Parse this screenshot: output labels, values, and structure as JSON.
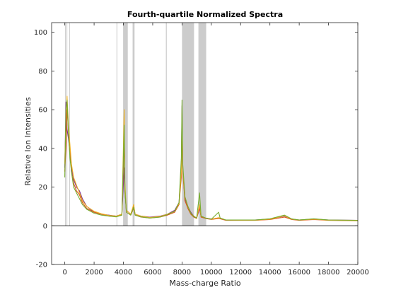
{
  "chart_data": {
    "type": "line",
    "title": "Fourth-quartile Normalized Spectra",
    "xlabel": "Mass-charge Ratio",
    "ylabel": "Relative Ion Intensities",
    "xlim": [
      -900,
      20000
    ],
    "ylim": [
      -20,
      105
    ],
    "xticks": [
      0,
      2000,
      4000,
      6000,
      8000,
      10000,
      12000,
      14000,
      16000,
      18000,
      20000
    ],
    "yticks": [
      -20,
      0,
      20,
      40,
      60,
      80,
      100
    ],
    "baseline_y": 0,
    "grid": false,
    "highlight_bands": [
      [
        20,
        60
      ],
      [
        120,
        160
      ],
      [
        300,
        350
      ],
      [
        3530,
        3580
      ],
      [
        3980,
        4300
      ],
      [
        4630,
        4760
      ],
      [
        6900,
        6960
      ],
      [
        8000,
        8820
      ],
      [
        9120,
        9650
      ]
    ],
    "series": [
      {
        "color": "#7E2F8E",
        "points": [
          [
            0,
            30
          ],
          [
            80,
            64
          ],
          [
            150,
            50
          ],
          [
            250,
            45
          ],
          [
            350,
            38
          ],
          [
            450,
            30
          ],
          [
            600,
            24
          ],
          [
            800,
            20
          ],
          [
            1000,
            18
          ],
          [
            1200,
            14
          ],
          [
            1500,
            10
          ],
          [
            2000,
            7
          ],
          [
            2500,
            6
          ],
          [
            3000,
            5.5
          ],
          [
            3500,
            5
          ],
          [
            3900,
            6
          ],
          [
            4050,
            30
          ],
          [
            4100,
            18
          ],
          [
            4200,
            8
          ],
          [
            4500,
            6
          ],
          [
            4700,
            10
          ],
          [
            4800,
            6
          ],
          [
            5200,
            5
          ],
          [
            5800,
            4.5
          ],
          [
            6500,
            5
          ],
          [
            7000,
            6
          ],
          [
            7500,
            8
          ],
          [
            7800,
            12
          ],
          [
            7950,
            30
          ],
          [
            8000,
            62
          ],
          [
            8050,
            30
          ],
          [
            8200,
            14
          ],
          [
            8400,
            10
          ],
          [
            8600,
            7
          ],
          [
            8800,
            5
          ],
          [
            9000,
            4
          ],
          [
            9200,
            9
          ],
          [
            9300,
            5
          ],
          [
            9600,
            4
          ],
          [
            10000,
            3.5
          ],
          [
            10500,
            4
          ],
          [
            11000,
            3
          ],
          [
            12000,
            3
          ],
          [
            13000,
            3
          ],
          [
            14000,
            3.5
          ],
          [
            15000,
            5
          ],
          [
            15500,
            3.5
          ],
          [
            16000,
            3
          ],
          [
            17000,
            3.5
          ],
          [
            18000,
            3
          ],
          [
            20000,
            2.8
          ]
        ]
      },
      {
        "color": "#D95319",
        "points": [
          [
            0,
            28
          ],
          [
            80,
            40
          ],
          [
            150,
            60
          ],
          [
            250,
            50
          ],
          [
            350,
            40
          ],
          [
            450,
            28
          ],
          [
            600,
            22
          ],
          [
            800,
            18
          ],
          [
            1000,
            16
          ],
          [
            1200,
            12
          ],
          [
            1500,
            9
          ],
          [
            2000,
            7
          ],
          [
            2500,
            6
          ],
          [
            3000,
            5
          ],
          [
            3500,
            4.8
          ],
          [
            3900,
            5.5
          ],
          [
            4050,
            45
          ],
          [
            4100,
            20
          ],
          [
            4200,
            7
          ],
          [
            4500,
            5.5
          ],
          [
            4700,
            9
          ],
          [
            4800,
            5.5
          ],
          [
            5200,
            4.5
          ],
          [
            5800,
            4
          ],
          [
            6500,
            4.5
          ],
          [
            7000,
            5.5
          ],
          [
            7500,
            7
          ],
          [
            7800,
            11
          ],
          [
            7950,
            25
          ],
          [
            8000,
            55
          ],
          [
            8050,
            28
          ],
          [
            8200,
            13
          ],
          [
            8400,
            9
          ],
          [
            8600,
            6
          ],
          [
            8800,
            4.5
          ],
          [
            9000,
            3.8
          ],
          [
            9200,
            10
          ],
          [
            9300,
            4.5
          ],
          [
            9600,
            3.8
          ],
          [
            10000,
            3.3
          ],
          [
            10500,
            3.8
          ],
          [
            11000,
            2.8
          ],
          [
            12000,
            2.8
          ],
          [
            13000,
            2.8
          ],
          [
            14000,
            3.2
          ],
          [
            15000,
            4.5
          ],
          [
            15500,
            3.2
          ],
          [
            16000,
            2.8
          ],
          [
            17000,
            3.2
          ],
          [
            18000,
            2.8
          ],
          [
            20000,
            2.6
          ]
        ]
      },
      {
        "color": "#EDB120",
        "points": [
          [
            0,
            32
          ],
          [
            80,
            55
          ],
          [
            150,
            67
          ],
          [
            250,
            52
          ],
          [
            350,
            42
          ],
          [
            450,
            32
          ],
          [
            600,
            25
          ],
          [
            800,
            21
          ],
          [
            1000,
            17
          ],
          [
            1200,
            13
          ],
          [
            1500,
            10
          ],
          [
            2000,
            7.5
          ],
          [
            2500,
            6.2
          ],
          [
            3000,
            5.4
          ],
          [
            3500,
            5
          ],
          [
            3900,
            6
          ],
          [
            4050,
            60
          ],
          [
            4100,
            22
          ],
          [
            4200,
            8
          ],
          [
            4500,
            6
          ],
          [
            4700,
            11
          ],
          [
            4800,
            6
          ],
          [
            5200,
            5
          ],
          [
            5800,
            4.3
          ],
          [
            6500,
            4.8
          ],
          [
            7000,
            6
          ],
          [
            7500,
            7.5
          ],
          [
            7800,
            11.5
          ],
          [
            7950,
            28
          ],
          [
            8000,
            58
          ],
          [
            8050,
            30
          ],
          [
            8200,
            15
          ],
          [
            8400,
            10
          ],
          [
            8600,
            6.5
          ],
          [
            8800,
            5
          ],
          [
            9000,
            4
          ],
          [
            9200,
            11
          ],
          [
            9300,
            5
          ],
          [
            9600,
            4
          ],
          [
            10000,
            3.4
          ],
          [
            10500,
            4.2
          ],
          [
            11000,
            3
          ],
          [
            12000,
            2.9
          ],
          [
            13000,
            2.9
          ],
          [
            14000,
            3.4
          ],
          [
            15000,
            5.2
          ],
          [
            15500,
            3.4
          ],
          [
            16000,
            3
          ],
          [
            17000,
            3.4
          ],
          [
            18000,
            2.9
          ],
          [
            20000,
            2.7
          ]
        ]
      },
      {
        "color": "#77AC30",
        "points": [
          [
            0,
            25
          ],
          [
            80,
            60
          ],
          [
            150,
            65
          ],
          [
            250,
            48
          ],
          [
            350,
            35
          ],
          [
            450,
            28
          ],
          [
            600,
            20
          ],
          [
            800,
            17
          ],
          [
            1000,
            14
          ],
          [
            1200,
            11
          ],
          [
            1500,
            8.5
          ],
          [
            2000,
            6.5
          ],
          [
            2500,
            5.5
          ],
          [
            3000,
            5
          ],
          [
            3500,
            4.6
          ],
          [
            3900,
            5.5
          ],
          [
            4050,
            52
          ],
          [
            4100,
            19
          ],
          [
            4200,
            7
          ],
          [
            4500,
            5.5
          ],
          [
            4700,
            9.5
          ],
          [
            4800,
            5.5
          ],
          [
            5200,
            4.6
          ],
          [
            5800,
            4
          ],
          [
            6500,
            4.5
          ],
          [
            7000,
            5.8
          ],
          [
            7500,
            7.5
          ],
          [
            7800,
            12
          ],
          [
            7950,
            35
          ],
          [
            8000,
            65
          ],
          [
            8050,
            32
          ],
          [
            8200,
            15
          ],
          [
            8400,
            10
          ],
          [
            8600,
            6.5
          ],
          [
            8800,
            4.8
          ],
          [
            9000,
            4
          ],
          [
            9200,
            17
          ],
          [
            9300,
            5
          ],
          [
            9600,
            4
          ],
          [
            10000,
            3.4
          ],
          [
            10500,
            7
          ],
          [
            10600,
            4
          ],
          [
            11000,
            3
          ],
          [
            12000,
            3
          ],
          [
            13000,
            3
          ],
          [
            14000,
            3.6
          ],
          [
            15000,
            5.5
          ],
          [
            15500,
            3.5
          ],
          [
            16000,
            3
          ],
          [
            17000,
            3.6
          ],
          [
            18000,
            3
          ],
          [
            20000,
            2.8
          ]
        ]
      }
    ]
  }
}
